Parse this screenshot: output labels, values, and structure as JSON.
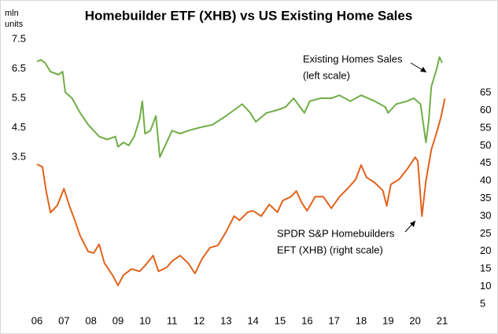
{
  "chart_data": {
    "type": "line",
    "title": "Homebuilder ETF (XHB) vs US Existing Home Sales",
    "y_label": "mln units",
    "annotations": [
      "Existing Homes Sales",
      "(left scale)",
      "SPDR S&P Homebuilders",
      "EFT (XHB) (right scale)"
    ],
    "xlim": [
      2006,
      2021
    ],
    "xticks": [
      {
        "value": 2006,
        "label": "06"
      },
      {
        "value": 2007,
        "label": "07"
      },
      {
        "value": 2008,
        "label": "08"
      },
      {
        "value": 2009,
        "label": "09"
      },
      {
        "value": 2010,
        "label": "10"
      },
      {
        "value": 2011,
        "label": "11"
      },
      {
        "value": 2012,
        "label": "12"
      },
      {
        "value": 2013,
        "label": "13"
      },
      {
        "value": 2014,
        "label": "14"
      },
      {
        "value": 2015,
        "label": "15"
      },
      {
        "value": 2016,
        "label": "16"
      },
      {
        "value": 2017,
        "label": "17"
      },
      {
        "value": 2018,
        "label": "18"
      },
      {
        "value": 2019,
        "label": "19"
      },
      {
        "value": 2020,
        "label": "20"
      },
      {
        "value": 2021,
        "label": "21"
      }
    ],
    "ylim": [
      -1.65,
      7.5
    ],
    "yticks": [
      3.5,
      4.5,
      5.5,
      6.5,
      7.5
    ],
    "y2lim": [
      3.66,
      80.2
    ],
    "y2ticks": [
      5,
      10,
      15,
      20,
      25,
      30,
      35,
      40,
      45,
      50,
      55,
      60,
      65
    ],
    "series": [
      {
        "name": "Existing Homes Sales",
        "color": "#70ad47",
        "x": [
          2006.0,
          2006.15,
          2006.3,
          2006.5,
          2006.8,
          2006.95,
          2007.05,
          2007.3,
          2007.6,
          2007.9,
          2008.1,
          2008.3,
          2008.6,
          2008.9,
          2009.0,
          2009.2,
          2009.4,
          2009.6,
          2009.8,
          2009.9,
          2010.0,
          2010.2,
          2010.4,
          2010.55,
          2010.6,
          2010.8,
          2011.0,
          2011.3,
          2011.6,
          2012.0,
          2012.5,
          2013.0,
          2013.3,
          2013.6,
          2013.9,
          2014.1,
          2014.5,
          2014.9,
          2015.2,
          2015.5,
          2015.9,
          2016.1,
          2016.5,
          2016.9,
          2017.2,
          2017.6,
          2018.0,
          2018.5,
          2018.9,
          2019.0,
          2019.3,
          2019.7,
          2019.95,
          2020.2,
          2020.4,
          2020.5,
          2020.6,
          2020.8,
          2020.9,
          2021.0
        ],
        "values": [
          6.75,
          6.8,
          6.7,
          6.4,
          6.3,
          6.4,
          5.7,
          5.5,
          5.0,
          4.6,
          4.4,
          4.2,
          4.1,
          4.2,
          3.85,
          4.0,
          3.9,
          4.2,
          4.8,
          5.4,
          4.3,
          4.4,
          4.9,
          3.5,
          3.6,
          4.0,
          4.4,
          4.3,
          4.4,
          4.5,
          4.6,
          4.9,
          5.1,
          5.3,
          5.0,
          4.7,
          5.0,
          5.1,
          5.2,
          5.5,
          5.0,
          5.4,
          5.5,
          5.5,
          5.6,
          5.4,
          5.6,
          5.4,
          5.2,
          5.0,
          5.3,
          5.4,
          5.5,
          5.3,
          4.0,
          4.7,
          5.9,
          6.5,
          6.9,
          6.7
        ]
      },
      {
        "name": "SPDR S&P Homebuilders EFT (XHB)",
        "color": "#e2621b",
        "axis": "y2",
        "x": [
          2006.0,
          2006.2,
          2006.35,
          2006.5,
          2006.75,
          2007.0,
          2007.2,
          2007.4,
          2007.6,
          2007.9,
          2008.1,
          2008.3,
          2008.5,
          2008.8,
          2009.0,
          2009.2,
          2009.5,
          2009.8,
          2010.0,
          2010.3,
          2010.5,
          2010.8,
          2011.0,
          2011.3,
          2011.6,
          2011.85,
          2012.1,
          2012.4,
          2012.7,
          2013.0,
          2013.3,
          2013.5,
          2013.8,
          2014.0,
          2014.3,
          2014.6,
          2014.9,
          2015.1,
          2015.4,
          2015.6,
          2015.8,
          2016.0,
          2016.3,
          2016.6,
          2016.9,
          2017.2,
          2017.5,
          2017.8,
          2018.0,
          2018.2,
          2018.5,
          2018.8,
          2018.95,
          2019.1,
          2019.4,
          2019.7,
          2020.0,
          2020.1,
          2020.25,
          2020.4,
          2020.6,
          2020.8,
          2020.95,
          2021.1
        ],
        "values": [
          44.7,
          44.0,
          36.7,
          31.0,
          33.0,
          37.8,
          32.9,
          28.8,
          24.4,
          19.9,
          19.5,
          22.0,
          16.6,
          13.2,
          10.3,
          13.2,
          15.0,
          14.3,
          15.9,
          18.8,
          14.3,
          15.4,
          17.2,
          18.8,
          16.6,
          13.7,
          17.7,
          21.0,
          21.7,
          25.5,
          30.0,
          28.8,
          31.1,
          31.5,
          30.0,
          33.3,
          31.1,
          34.4,
          35.5,
          37.1,
          33.8,
          31.5,
          35.5,
          35.5,
          32.2,
          35.5,
          37.8,
          40.4,
          44.5,
          41.0,
          39.5,
          37.3,
          32.9,
          39.0,
          40.4,
          43.3,
          46.7,
          45.6,
          30.0,
          40.0,
          48.9,
          53.8,
          57.9,
          63.4
        ]
      }
    ]
  }
}
